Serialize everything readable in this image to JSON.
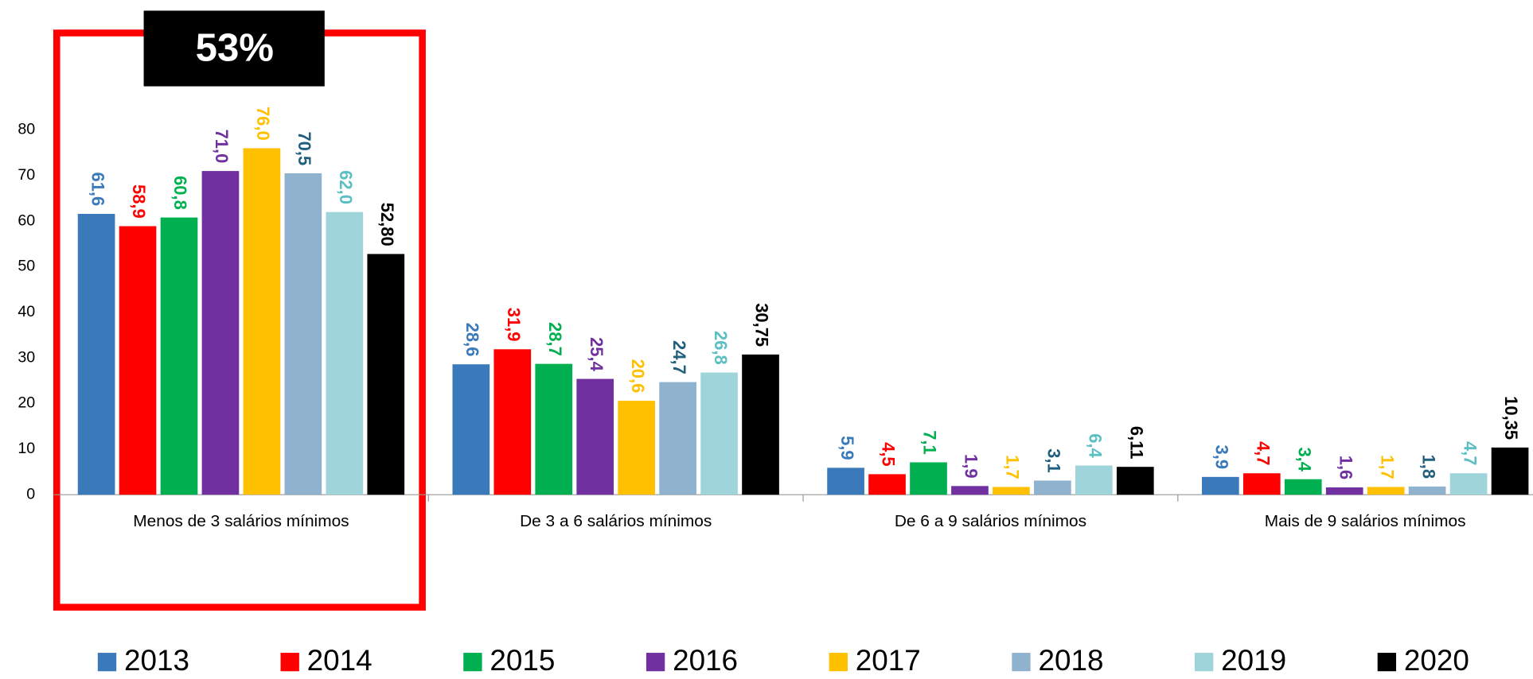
{
  "chart_data": {
    "type": "bar",
    "annotation": "53%",
    "categories": [
      "Menos de 3 salários mínimos",
      "De 3 a 6 salários mínimos",
      "De 6 a 9 salários mínimos",
      "Mais de 9 salários mínimos"
    ],
    "series": [
      {
        "name": "2013",
        "color": "#3a7aba",
        "label_color": "#3a7aba",
        "values": [
          61.6,
          28.6,
          5.9,
          3.9
        ],
        "value_labels": [
          "61,6",
          "28,6",
          "5,9",
          "3,9"
        ]
      },
      {
        "name": "2014",
        "color": "#ff0000",
        "label_color": "#ff0000",
        "values": [
          58.9,
          31.9,
          4.5,
          4.7
        ],
        "value_labels": [
          "58,9",
          "31,9",
          "4,5",
          "4,7"
        ]
      },
      {
        "name": "2015",
        "color": "#00b050",
        "label_color": "#00b050",
        "values": [
          60.8,
          28.7,
          7.1,
          3.4
        ],
        "value_labels": [
          "60,8",
          "28,7",
          "7,1",
          "3,4"
        ]
      },
      {
        "name": "2016",
        "color": "#7030a0",
        "label_color": "#7030a0",
        "values": [
          71.0,
          25.4,
          1.9,
          1.6
        ],
        "value_labels": [
          "71,0",
          "25,4",
          "1,9",
          "1,6"
        ]
      },
      {
        "name": "2017",
        "color": "#ffc000",
        "label_color": "#ffc000",
        "values": [
          76.0,
          20.6,
          1.7,
          1.7
        ],
        "value_labels": [
          "76,0",
          "20,6",
          "1,7",
          "1,7"
        ]
      },
      {
        "name": "2018",
        "color": "#8fb3cf",
        "label_color": "#215f7e",
        "values": [
          70.5,
          24.7,
          3.1,
          1.8
        ],
        "value_labels": [
          "70,5",
          "24,7",
          "3,1",
          "1,8"
        ]
      },
      {
        "name": "2019",
        "color": "#9fd5da",
        "label_color": "#5bbfc4",
        "values": [
          62.0,
          26.8,
          6.4,
          4.7
        ],
        "value_labels": [
          "62,0",
          "26,8",
          "6,4",
          "4,7"
        ]
      },
      {
        "name": "2020",
        "color": "#000000",
        "label_color": "#000000",
        "values": [
          52.8,
          30.75,
          6.11,
          10.35
        ],
        "value_labels": [
          "52,80",
          "30,75",
          "6,11",
          "10,35"
        ]
      }
    ],
    "ylim": [
      0,
      80
    ],
    "yticks": [
      0,
      10,
      20,
      30,
      40,
      50,
      60,
      70,
      80
    ],
    "grid": false,
    "legend": "bottom"
  }
}
